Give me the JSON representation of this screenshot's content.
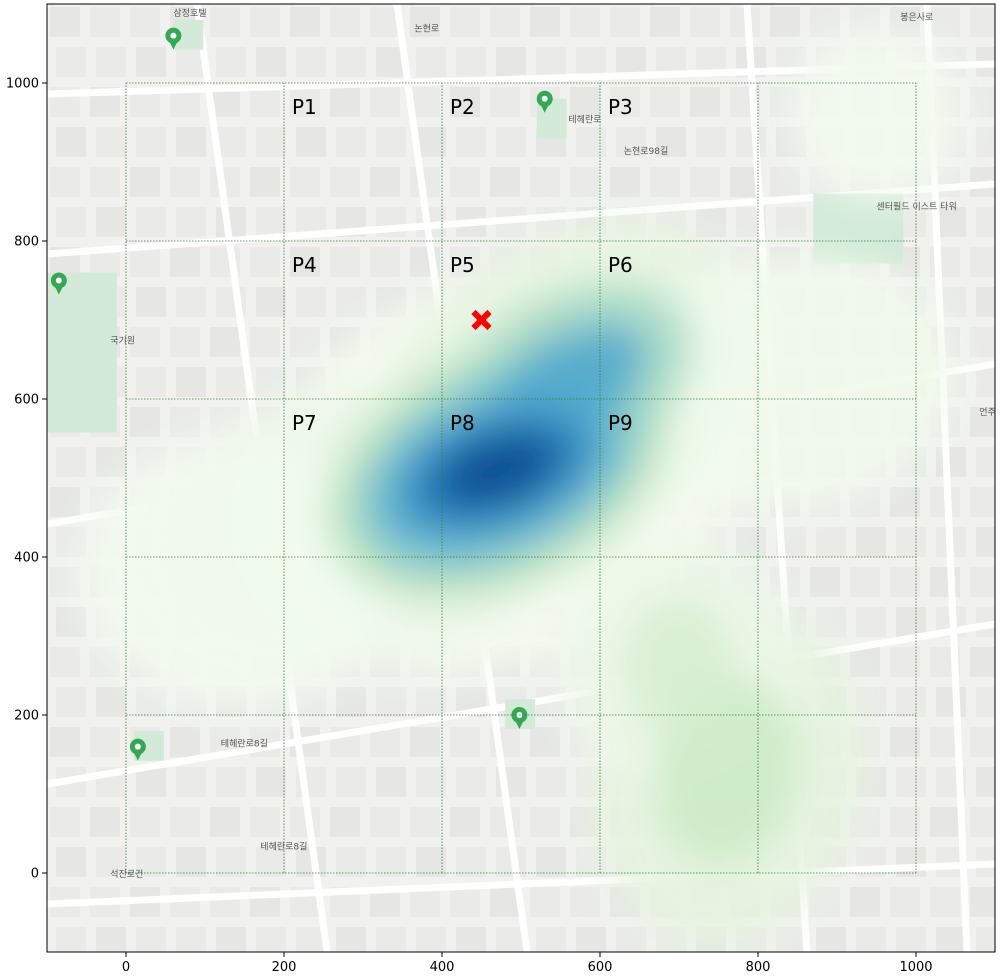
{
  "chart_data": {
    "type": "heatmap",
    "subtype": "kde-density-over-map",
    "xlim": [
      -100,
      1100
    ],
    "ylim": [
      -100,
      1100
    ],
    "xticks": [
      0,
      200,
      400,
      600,
      800,
      1000
    ],
    "yticks": [
      0,
      200,
      400,
      600,
      800,
      1000
    ],
    "grid": {
      "lines_x": [
        0,
        200,
        400,
        600,
        800,
        1000
      ],
      "lines_y": [
        0,
        200,
        400,
        600,
        800,
        1000
      ],
      "color": "#2e7d32",
      "style": "dotted"
    },
    "regions": [
      {
        "label": "P1",
        "x": 200,
        "y": 1000
      },
      {
        "label": "P2",
        "x": 400,
        "y": 1000
      },
      {
        "label": "P3",
        "x": 600,
        "y": 1000
      },
      {
        "label": "P4",
        "x": 200,
        "y": 800
      },
      {
        "label": "P5",
        "x": 400,
        "y": 800
      },
      {
        "label": "P6",
        "x": 600,
        "y": 800
      },
      {
        "label": "P7",
        "x": 200,
        "y": 600
      },
      {
        "label": "P8",
        "x": 400,
        "y": 600
      },
      {
        "label": "P9",
        "x": 600,
        "y": 600
      }
    ],
    "marker": {
      "symbol": "X",
      "x": 450,
      "y": 700,
      "color": "#ff0000"
    },
    "density_clusters": [
      {
        "x": 470,
        "y": 510,
        "weight": 1.0
      },
      {
        "x": 560,
        "y": 620,
        "weight": 0.55
      },
      {
        "x": 300,
        "y": 440,
        "weight": 0.45
      },
      {
        "x": 760,
        "y": 130,
        "weight": 0.35
      },
      {
        "x": 700,
        "y": 260,
        "weight": 0.3
      },
      {
        "x": 140,
        "y": 380,
        "weight": 0.25
      },
      {
        "x": 950,
        "y": 960,
        "weight": 0.12
      },
      {
        "x": 830,
        "y": 620,
        "weight": 0.2
      }
    ],
    "colormap": "GnBu",
    "background": "street-map",
    "map_labels": [
      {
        "text": "삼정호텔",
        "x": 60,
        "y": 1085
      },
      {
        "text": "논현로",
        "x": 365,
        "y": 1065
      },
      {
        "text": "봉은사로",
        "x": 980,
        "y": 1080
      },
      {
        "text": "논현로98길",
        "x": 630,
        "y": 910
      },
      {
        "text": "테헤란로",
        "x": 560,
        "y": 950
      },
      {
        "text": "센터필드 이스트 타워",
        "x": 950,
        "y": 840
      },
      {
        "text": "국기원",
        "x": -20,
        "y": 670
      },
      {
        "text": "언주로",
        "x": 1080,
        "y": 580
      },
      {
        "text": "테헤란로8길",
        "x": 120,
        "y": 160
      },
      {
        "text": "테헤란로8길",
        "x": 170,
        "y": 30
      },
      {
        "text": "석진로건",
        "x": -20,
        "y": -5
      }
    ]
  }
}
